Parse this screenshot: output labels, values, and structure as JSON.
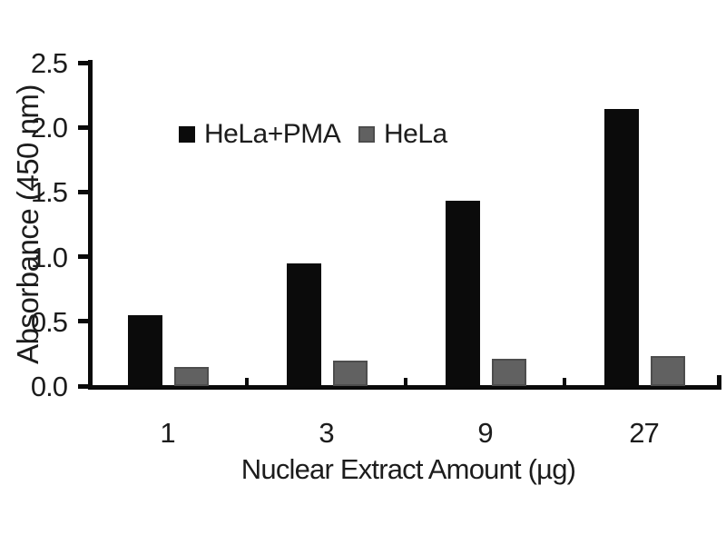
{
  "chart_data": {
    "type": "bar",
    "title": "",
    "xlabel": "Nuclear Extract Amount (µg)",
    "ylabel": "Absorbance (450 nm)",
    "categories": [
      "1",
      "3",
      "9",
      "27"
    ],
    "series": [
      {
        "name": "HeLa+PMA",
        "color": "#0b0b0b",
        "border_color": "#0b0b0b",
        "values": [
          0.55,
          0.95,
          1.43,
          2.14
        ]
      },
      {
        "name": "HeLa",
        "color": "#616161",
        "border_color": "#4d4d4d",
        "values": [
          0.15,
          0.2,
          0.21,
          0.23
        ]
      }
    ],
    "ylim": [
      0.0,
      2.5
    ],
    "ytick_step": 0.5,
    "yticks": [
      "0.0",
      "0.5",
      "1.0",
      "1.5",
      "2.0",
      "2.5"
    ],
    "grid": false,
    "legend_position": "inside-top",
    "axis_color": "#0a0a0a",
    "background_color": "#ffffff"
  }
}
